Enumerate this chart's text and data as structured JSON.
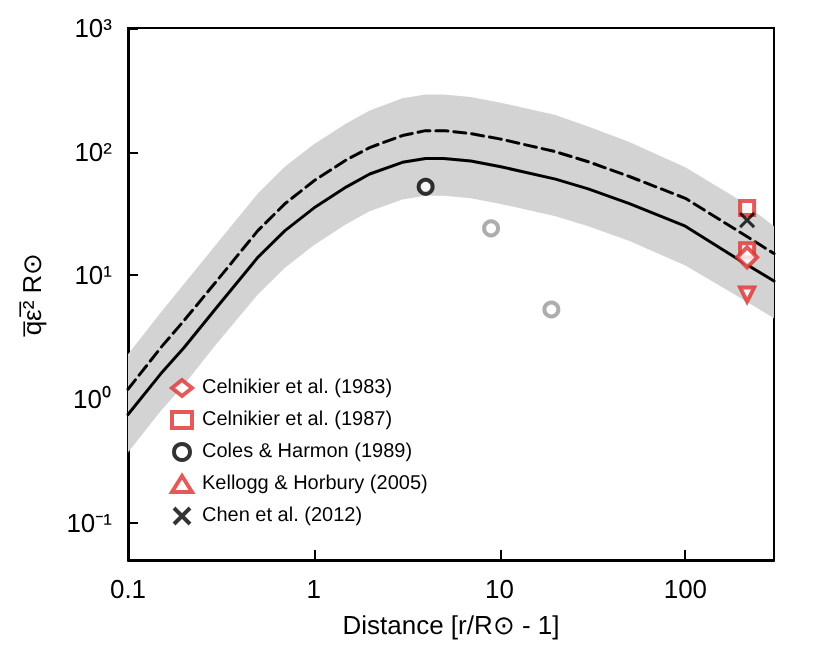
{
  "chart_data": {
    "type": "line",
    "xlabel": "Distance [r/R⊙ - 1]",
    "ylabel": "q̅ε̅² R⊙",
    "log": "xy",
    "xlim": [
      0.1,
      300
    ],
    "ylim": [
      0.05,
      1000
    ],
    "xticks": [
      0.1,
      1,
      10,
      100
    ],
    "yticks": [
      {
        "value": 0.1,
        "label": "10⁻¹"
      },
      {
        "value": 1,
        "label": "10⁰"
      },
      {
        "value": 10,
        "label": "10¹"
      },
      {
        "value": 100,
        "label": "10²"
      },
      {
        "value": 1000,
        "label": "10³"
      }
    ],
    "legend": "bottom left",
    "series": [
      {
        "color": "#000000",
        "line_style": "solid",
        "x": [
          0.1,
          0.15,
          0.2,
          0.3,
          0.5,
          0.7,
          1,
          1.5,
          2,
          3,
          4,
          5,
          7,
          10,
          20,
          30,
          50,
          100,
          200,
          300
        ],
        "values": [
          0.75,
          1.6,
          2.6,
          5.5,
          14,
          23,
          35,
          52,
          66,
          82,
          88,
          88,
          84,
          76,
          60,
          50,
          38,
          25,
          13,
          9
        ],
        "lower": [
          0.37,
          0.8,
          1.3,
          2.8,
          7,
          11.5,
          17.5,
          26,
          33,
          41,
          44,
          44,
          42,
          38,
          30,
          25,
          19,
          12,
          6.5,
          4.5
        ],
        "upper": [
          2.3,
          5,
          8.5,
          18,
          46,
          76,
          115,
          170,
          215,
          270,
          290,
          290,
          277,
          250,
          198,
          160,
          120,
          75,
          40,
          25
        ]
      },
      {
        "color": "#000000",
        "line_style": "dashed",
        "x": [
          0.1,
          0.15,
          0.2,
          0.3,
          0.5,
          0.7,
          1,
          1.5,
          2,
          3,
          4,
          5,
          7,
          10,
          20,
          30,
          50,
          100,
          200,
          300
        ],
        "values": [
          1.2,
          2.6,
          4.3,
          9,
          23,
          38,
          58,
          86,
          108,
          135,
          148,
          148,
          140,
          127,
          100,
          83,
          63,
          42,
          22,
          15
        ]
      },
      {
        "type": "scatter",
        "name": "Celnikier et al. (1983)",
        "marker": "diamond",
        "color": "#e03030",
        "x": [
          215
        ],
        "values": [
          14
        ]
      },
      {
        "type": "scatter",
        "name": "Celnikier et al. (1987)",
        "marker": "square",
        "color": "#e03030",
        "x": [
          215,
          215
        ],
        "values": [
          35,
          16
        ]
      },
      {
        "type": "scatter",
        "name": "Coles & Harmon (1989)",
        "marker": "circle",
        "color": "#000000",
        "colors": [
          "#000000",
          "#999999",
          "#999999"
        ],
        "x": [
          4,
          9,
          19
        ],
        "values": [
          52,
          24,
          5.3
        ]
      },
      {
        "type": "scatter",
        "name": "Kellogg & Horbury (2005)",
        "marker": "triangle",
        "color": "#e03030",
        "x": [
          215
        ],
        "values": [
          7
        ]
      },
      {
        "type": "scatter",
        "name": "Chen et al. (2012)",
        "marker": "cross",
        "color": "#000000",
        "x": [
          215
        ],
        "values": [
          28
        ]
      }
    ]
  }
}
